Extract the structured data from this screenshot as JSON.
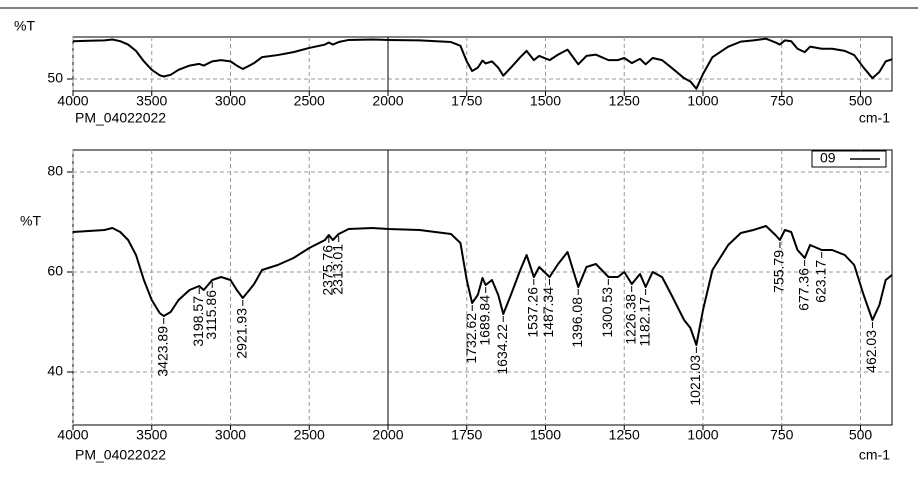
{
  "chart_data": [
    {
      "type": "line",
      "ylabel": "%T",
      "xlabel": "cm-1",
      "note": "PM_04022022",
      "xlim": [
        4000,
        400
      ],
      "x_scale": {
        "break": 2000,
        "factor": 2
      },
      "xticks": [
        4000,
        3500,
        3000,
        2500,
        2000,
        1750,
        1500,
        1250,
        1000,
        750,
        500
      ],
      "ylim": [
        44.3,
        70
      ],
      "yticks": [
        50
      ],
      "grid": true,
      "series": [
        {
          "color": "#000000",
          "x": [
            4000,
            3900,
            3800,
            3750,
            3700,
            3650,
            3600,
            3550,
            3500,
            3450,
            3424,
            3380,
            3330,
            3260,
            3199,
            3170,
            3116,
            3060,
            3000,
            2960,
            2922,
            2880,
            2850,
            2800,
            2700,
            2600,
            2500,
            2400,
            2376,
            2350,
            2313,
            2250,
            2100,
            2000,
            1900,
            1800,
            1770,
            1750,
            1733,
            1715,
            1700,
            1690,
            1670,
            1650,
            1634,
            1610,
            1580,
            1560,
            1537,
            1520,
            1487,
            1460,
            1430,
            1396,
            1370,
            1340,
            1300,
            1270,
            1250,
            1226,
            1200,
            1182,
            1160,
            1130,
            1100,
            1060,
            1040,
            1021,
            1000,
            970,
            920,
            880,
            840,
            800,
            770,
            756,
            740,
            720,
            700,
            677,
            660,
            623,
            590,
            550,
            520,
            490,
            462,
            440,
            420,
            400
          ],
          "values": [
            68,
            68.2,
            68.4,
            68.8,
            68,
            66.4,
            63.4,
            58.4,
            54.4,
            51.8,
            51.2,
            52,
            54.4,
            56.4,
            57.2,
            56.4,
            58.4,
            59,
            58.4,
            56.4,
            54.8,
            56.4,
            57.6,
            60.4,
            61.4,
            62.8,
            64.8,
            66.4,
            67.4,
            66.4,
            67.6,
            68.6,
            68.8,
            68.6,
            68.4,
            67.6,
            65.8,
            58.4,
            53.8,
            55.4,
            58.8,
            57.4,
            58.4,
            55.4,
            51.6,
            55.4,
            60.4,
            63.4,
            59,
            61,
            59,
            61.6,
            64,
            57,
            61,
            61.6,
            59,
            59,
            60,
            57.6,
            59.6,
            57,
            60,
            59,
            55.4,
            50.4,
            48.8,
            45.4,
            52.4,
            60.4,
            65.4,
            67.8,
            68.4,
            69.2,
            67.4,
            66.4,
            68.4,
            68,
            64.4,
            62.8,
            65.4,
            64.4,
            64.4,
            63.4,
            61.4,
            55.4,
            50.4,
            53.4,
            58.4,
            59.4
          ]
        }
      ]
    },
    {
      "type": "line",
      "ylabel": "%T",
      "xlabel": "cm-1",
      "note": "PM_04022022",
      "xlim": [
        4000,
        400
      ],
      "x_scale": {
        "break": 2000,
        "factor": 2
      },
      "xticks": [
        4000,
        3500,
        3000,
        2500,
        2000,
        1750,
        1500,
        1250,
        1000,
        750,
        500
      ],
      "ylim": [
        29.4,
        84.4
      ],
      "yticks": [
        40,
        60,
        80
      ],
      "grid": true,
      "legend": "top-right",
      "series": [
        {
          "name": "09",
          "color": "#000000",
          "x": [
            4000,
            3900,
            3800,
            3750,
            3700,
            3650,
            3600,
            3550,
            3500,
            3450,
            3424,
            3380,
            3330,
            3260,
            3199,
            3170,
            3116,
            3060,
            3000,
            2960,
            2922,
            2880,
            2850,
            2800,
            2700,
            2600,
            2500,
            2400,
            2376,
            2350,
            2313,
            2250,
            2100,
            2000,
            1900,
            1800,
            1770,
            1750,
            1733,
            1715,
            1700,
            1690,
            1670,
            1650,
            1634,
            1610,
            1580,
            1560,
            1537,
            1520,
            1487,
            1460,
            1430,
            1396,
            1370,
            1340,
            1300,
            1270,
            1250,
            1226,
            1200,
            1182,
            1160,
            1130,
            1100,
            1060,
            1040,
            1021,
            1000,
            970,
            920,
            880,
            840,
            800,
            770,
            756,
            740,
            720,
            700,
            677,
            660,
            623,
            590,
            550,
            520,
            490,
            462,
            440,
            420,
            400
          ],
          "values": [
            68,
            68.2,
            68.4,
            68.8,
            68,
            66.4,
            63.4,
            58.4,
            54.4,
            51.8,
            51.2,
            52,
            54.4,
            56.4,
            57.2,
            56.4,
            58.4,
            59,
            58.4,
            56.4,
            54.8,
            56.4,
            57.6,
            60.4,
            61.4,
            62.8,
            64.8,
            66.4,
            67.4,
            66.4,
            67.6,
            68.6,
            68.8,
            68.6,
            68.4,
            67.6,
            65.8,
            58.4,
            53.8,
            55.4,
            58.8,
            57.4,
            58.4,
            55.4,
            51.6,
            55.4,
            60.4,
            63.4,
            59,
            61,
            59,
            61.6,
            64,
            57,
            61,
            61.6,
            59,
            59,
            60,
            57.6,
            59.6,
            57,
            60,
            59,
            55.4,
            50.4,
            48.8,
            45.4,
            52.4,
            60.4,
            65.4,
            67.8,
            68.4,
            69.2,
            67.4,
            66.4,
            68.4,
            68,
            64.4,
            62.8,
            65.4,
            64.4,
            64.4,
            63.4,
            61.4,
            55.4,
            50.4,
            53.4,
            58.4,
            59.4
          ]
        }
      ],
      "peaks": {
        "x": [
          3423.89,
          3198.57,
          3115.86,
          2921.93,
          2375.76,
          2313.01,
          1732.62,
          1689.84,
          1634.22,
          1537.26,
          1487.34,
          1396.08,
          1300.53,
          1226.38,
          1182.17,
          1021.03,
          755.79,
          677.36,
          623.17,
          462.03
        ],
        "y": [
          51.2,
          57.2,
          58.4,
          54.8,
          67.4,
          67.6,
          53.8,
          57.4,
          51.6,
          59,
          59,
          57,
          59,
          57.6,
          57,
          45.4,
          66.4,
          62.8,
          64.4,
          50.4
        ]
      }
    }
  ]
}
